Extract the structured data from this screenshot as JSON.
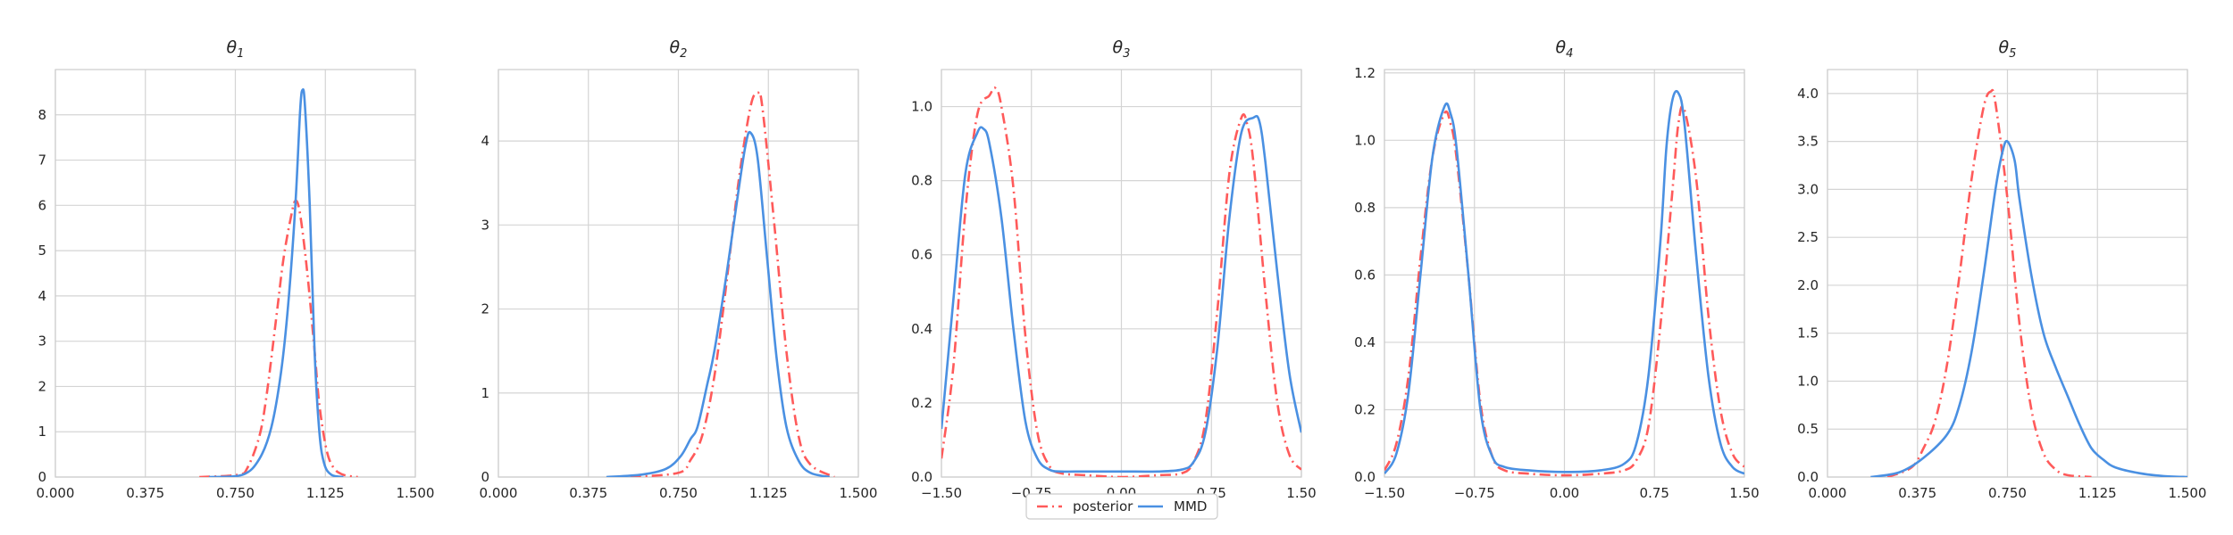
{
  "legend": {
    "items": [
      {
        "label": "posterior",
        "color": "#ff5a5a",
        "dash": "dashdot"
      },
      {
        "label": "MMD",
        "color": "#4a90e2",
        "dash": "solid"
      }
    ],
    "placement": "bottom-center"
  },
  "chart_data": [
    {
      "type": "line",
      "title_base": "θ",
      "title_sub": "1",
      "xlim": [
        0,
        1.5
      ],
      "xticks": [
        "0.000",
        "0.375",
        "0.750",
        "1.125",
        "1.500"
      ],
      "xtick_values": [
        0,
        0.375,
        0.75,
        1.125,
        1.5
      ],
      "ylim": [
        0,
        9
      ],
      "yticks": [
        "0",
        "1",
        "2",
        "3",
        "4",
        "5",
        "6",
        "7",
        "8"
      ],
      "ytick_values": [
        0,
        1,
        2,
        3,
        4,
        5,
        6,
        7,
        8
      ],
      "grid": true,
      "series": [
        {
          "name": "posterior",
          "color": "#ff5a5a",
          "dash": "dashdot",
          "x": [
            0.6,
            0.76,
            0.8,
            0.85,
            0.88,
            0.92,
            0.95,
            0.98,
            1.0,
            1.02,
            1.05,
            1.08,
            1.1,
            1.13,
            1.16,
            1.2,
            1.26
          ],
          "y": [
            0,
            0.05,
            0.2,
            0.9,
            1.8,
            3.5,
            4.8,
            5.7,
            6.1,
            5.8,
            4.5,
            2.8,
            1.6,
            0.6,
            0.2,
            0.05,
            0
          ]
        },
        {
          "name": "MMD",
          "color": "#4a90e2",
          "dash": "solid",
          "x": [
            0.64,
            0.78,
            0.85,
            0.9,
            0.94,
            0.97,
            1.0,
            1.02,
            1.03,
            1.04,
            1.06,
            1.08,
            1.1,
            1.12,
            1.15,
            1.2
          ],
          "y": [
            0,
            0.05,
            0.4,
            1.1,
            2.3,
            3.8,
            6.0,
            8.1,
            8.55,
            8.2,
            6.0,
            2.8,
            1.0,
            0.3,
            0.05,
            0
          ]
        }
      ]
    },
    {
      "type": "line",
      "title_base": "θ",
      "title_sub": "2",
      "xlim": [
        0,
        1.5
      ],
      "xticks": [
        "0.000",
        "0.375",
        "0.750",
        "1.125",
        "1.500"
      ],
      "xtick_values": [
        0,
        0.375,
        0.75,
        1.125,
        1.5
      ],
      "ylim": [
        0,
        4.85
      ],
      "yticks": [
        "0",
        "1",
        "2",
        "3",
        "4"
      ],
      "ytick_values": [
        0,
        1,
        2,
        3,
        4
      ],
      "grid": true,
      "series": [
        {
          "name": "posterior",
          "color": "#ff5a5a",
          "dash": "dashdot",
          "x": [
            0.55,
            0.75,
            0.8,
            0.85,
            0.9,
            0.95,
            1.0,
            1.05,
            1.08,
            1.1,
            1.15,
            1.2,
            1.25,
            1.3,
            1.4
          ],
          "y": [
            0,
            0.05,
            0.2,
            0.5,
            1.2,
            2.3,
            3.5,
            4.4,
            4.57,
            4.4,
            3.0,
            1.5,
            0.5,
            0.15,
            0
          ]
        },
        {
          "name": "MMD",
          "color": "#4a90e2",
          "dash": "solid",
          "x": [
            0.45,
            0.6,
            0.7,
            0.76,
            0.8,
            0.83,
            0.87,
            0.9,
            0.95,
            1.0,
            1.03,
            1.05,
            1.08,
            1.12,
            1.16,
            1.2,
            1.25,
            1.3,
            1.38
          ],
          "y": [
            0,
            0.03,
            0.1,
            0.25,
            0.45,
            0.6,
            1.1,
            1.5,
            2.4,
            3.4,
            3.95,
            4.1,
            3.8,
            2.6,
            1.4,
            0.6,
            0.2,
            0.05,
            0
          ]
        }
      ]
    },
    {
      "type": "line",
      "title_base": "θ",
      "title_sub": "3",
      "xlim": [
        -1.5,
        1.5
      ],
      "xticks": [
        "−1.50",
        "−0.75",
        "0.00",
        "0.75",
        "1.50"
      ],
      "xtick_values": [
        -1.5,
        -0.75,
        0,
        0.75,
        1.5
      ],
      "ylim": [
        0,
        1.1
      ],
      "yticks": [
        "0.0",
        "0.2",
        "0.4",
        "0.6",
        "0.8",
        "1.0"
      ],
      "ytick_values": [
        0,
        0.2,
        0.4,
        0.6,
        0.8,
        1.0
      ],
      "grid": true,
      "series": [
        {
          "name": "posterior",
          "color": "#ff5a5a",
          "dash": "dashdot",
          "x": [
            -1.5,
            -1.4,
            -1.3,
            -1.2,
            -1.1,
            -1.05,
            -1.0,
            -0.9,
            -0.8,
            -0.7,
            -0.6,
            -0.5,
            -0.3,
            0,
            0.3,
            0.5,
            0.6,
            0.7,
            0.8,
            0.9,
            1.0,
            1.05,
            1.1,
            1.2,
            1.3,
            1.4,
            1.5
          ],
          "y": [
            0.05,
            0.3,
            0.72,
            0.98,
            1.03,
            1.05,
            1.0,
            0.78,
            0.38,
            0.12,
            0.03,
            0.01,
            0.005,
            0,
            0.005,
            0.01,
            0.04,
            0.15,
            0.45,
            0.82,
            0.97,
            0.95,
            0.85,
            0.5,
            0.2,
            0.06,
            0.02
          ]
        },
        {
          "name": "MMD",
          "color": "#4a90e2",
          "dash": "solid",
          "x": [
            -1.5,
            -1.4,
            -1.3,
            -1.2,
            -1.15,
            -1.1,
            -1.0,
            -0.9,
            -0.8,
            -0.7,
            -0.6,
            -0.5,
            -0.3,
            0,
            0.3,
            0.5,
            0.6,
            0.7,
            0.8,
            0.9,
            1.0,
            1.1,
            1.15,
            1.2,
            1.3,
            1.4,
            1.5
          ],
          "y": [
            0.13,
            0.48,
            0.82,
            0.93,
            0.94,
            0.9,
            0.7,
            0.4,
            0.15,
            0.05,
            0.02,
            0.015,
            0.015,
            0.015,
            0.015,
            0.02,
            0.04,
            0.12,
            0.35,
            0.7,
            0.93,
            0.97,
            0.96,
            0.85,
            0.55,
            0.28,
            0.12
          ]
        }
      ]
    },
    {
      "type": "line",
      "title_base": "θ",
      "title_sub": "4",
      "xlim": [
        -1.5,
        1.5
      ],
      "xticks": [
        "−1.50",
        "−0.75",
        "0.00",
        "0.75",
        "1.50"
      ],
      "xtick_values": [
        -1.5,
        -0.75,
        0,
        0.75,
        1.5
      ],
      "ylim": [
        0,
        1.21
      ],
      "yticks": [
        "0.0",
        "0.2",
        "0.4",
        "0.6",
        "0.8",
        "1.0",
        "1.2"
      ],
      "ytick_values": [
        0,
        0.2,
        0.4,
        0.6,
        0.8,
        1.0,
        1.2
      ],
      "grid": true,
      "series": [
        {
          "name": "posterior",
          "color": "#ff5a5a",
          "dash": "dashdot",
          "x": [
            -1.5,
            -1.4,
            -1.3,
            -1.2,
            -1.1,
            -1.0,
            -0.95,
            -0.9,
            -0.8,
            -0.7,
            -0.6,
            -0.5,
            -0.3,
            0,
            0.3,
            0.5,
            0.6,
            0.7,
            0.8,
            0.9,
            0.95,
            1.0,
            1.1,
            1.2,
            1.3,
            1.4,
            1.5
          ],
          "y": [
            0.02,
            0.1,
            0.3,
            0.65,
            0.95,
            1.08,
            1.05,
            0.95,
            0.6,
            0.22,
            0.06,
            0.02,
            0.01,
            0.005,
            0.01,
            0.02,
            0.05,
            0.15,
            0.45,
            0.85,
            1.05,
            1.09,
            0.88,
            0.48,
            0.2,
            0.07,
            0.03
          ]
        },
        {
          "name": "MMD",
          "color": "#4a90e2",
          "dash": "solid",
          "x": [
            -1.5,
            -1.4,
            -1.3,
            -1.2,
            -1.1,
            -1.0,
            -0.95,
            -0.9,
            -0.8,
            -0.7,
            -0.6,
            -0.5,
            -0.3,
            0,
            0.3,
            0.5,
            0.6,
            0.7,
            0.8,
            0.85,
            0.9,
            0.95,
            1.0,
            1.1,
            1.2,
            1.3,
            1.4,
            1.5
          ],
          "y": [
            0.01,
            0.07,
            0.25,
            0.6,
            0.95,
            1.1,
            1.08,
            0.98,
            0.6,
            0.2,
            0.06,
            0.03,
            0.02,
            0.015,
            0.02,
            0.04,
            0.1,
            0.3,
            0.7,
            0.98,
            1.12,
            1.14,
            1.05,
            0.65,
            0.3,
            0.1,
            0.03,
            0.01
          ]
        }
      ]
    },
    {
      "type": "line",
      "title_base": "θ",
      "title_sub": "5",
      "xlim": [
        0,
        1.5
      ],
      "xticks": [
        "0.000",
        "0.375",
        "0.750",
        "1.125",
        "1.500"
      ],
      "xtick_values": [
        0,
        0.375,
        0.75,
        1.125,
        1.5
      ],
      "ylim": [
        0,
        4.25
      ],
      "yticks": [
        "0.0",
        "0.5",
        "1.0",
        "1.5",
        "2.0",
        "2.5",
        "3.0",
        "3.5",
        "4.0"
      ],
      "ytick_values": [
        0,
        0.5,
        1.0,
        1.5,
        2.0,
        2.5,
        3.0,
        3.5,
        4.0
      ],
      "grid": true,
      "series": [
        {
          "name": "posterior",
          "color": "#ff5a5a",
          "dash": "dashdot",
          "x": [
            0.25,
            0.35,
            0.4,
            0.45,
            0.5,
            0.55,
            0.6,
            0.65,
            0.68,
            0.7,
            0.75,
            0.8,
            0.85,
            0.9,
            0.95,
            1.0,
            1.1
          ],
          "y": [
            0,
            0.1,
            0.3,
            0.6,
            1.2,
            2.1,
            3.1,
            3.85,
            4.02,
            3.9,
            2.9,
            1.6,
            0.7,
            0.25,
            0.08,
            0.02,
            0
          ]
        },
        {
          "name": "MMD",
          "color": "#4a90e2",
          "dash": "solid",
          "x": [
            0.18,
            0.3,
            0.4,
            0.5,
            0.55,
            0.6,
            0.65,
            0.7,
            0.73,
            0.75,
            0.78,
            0.8,
            0.85,
            0.9,
            0.95,
            1.0,
            1.05,
            1.1,
            1.15,
            1.2,
            1.3,
            1.4,
            1.5
          ],
          "y": [
            0,
            0.05,
            0.2,
            0.45,
            0.75,
            1.3,
            2.1,
            3.0,
            3.4,
            3.5,
            3.3,
            2.9,
            2.1,
            1.5,
            1.15,
            0.85,
            0.55,
            0.3,
            0.18,
            0.1,
            0.04,
            0.01,
            0
          ]
        }
      ]
    }
  ]
}
